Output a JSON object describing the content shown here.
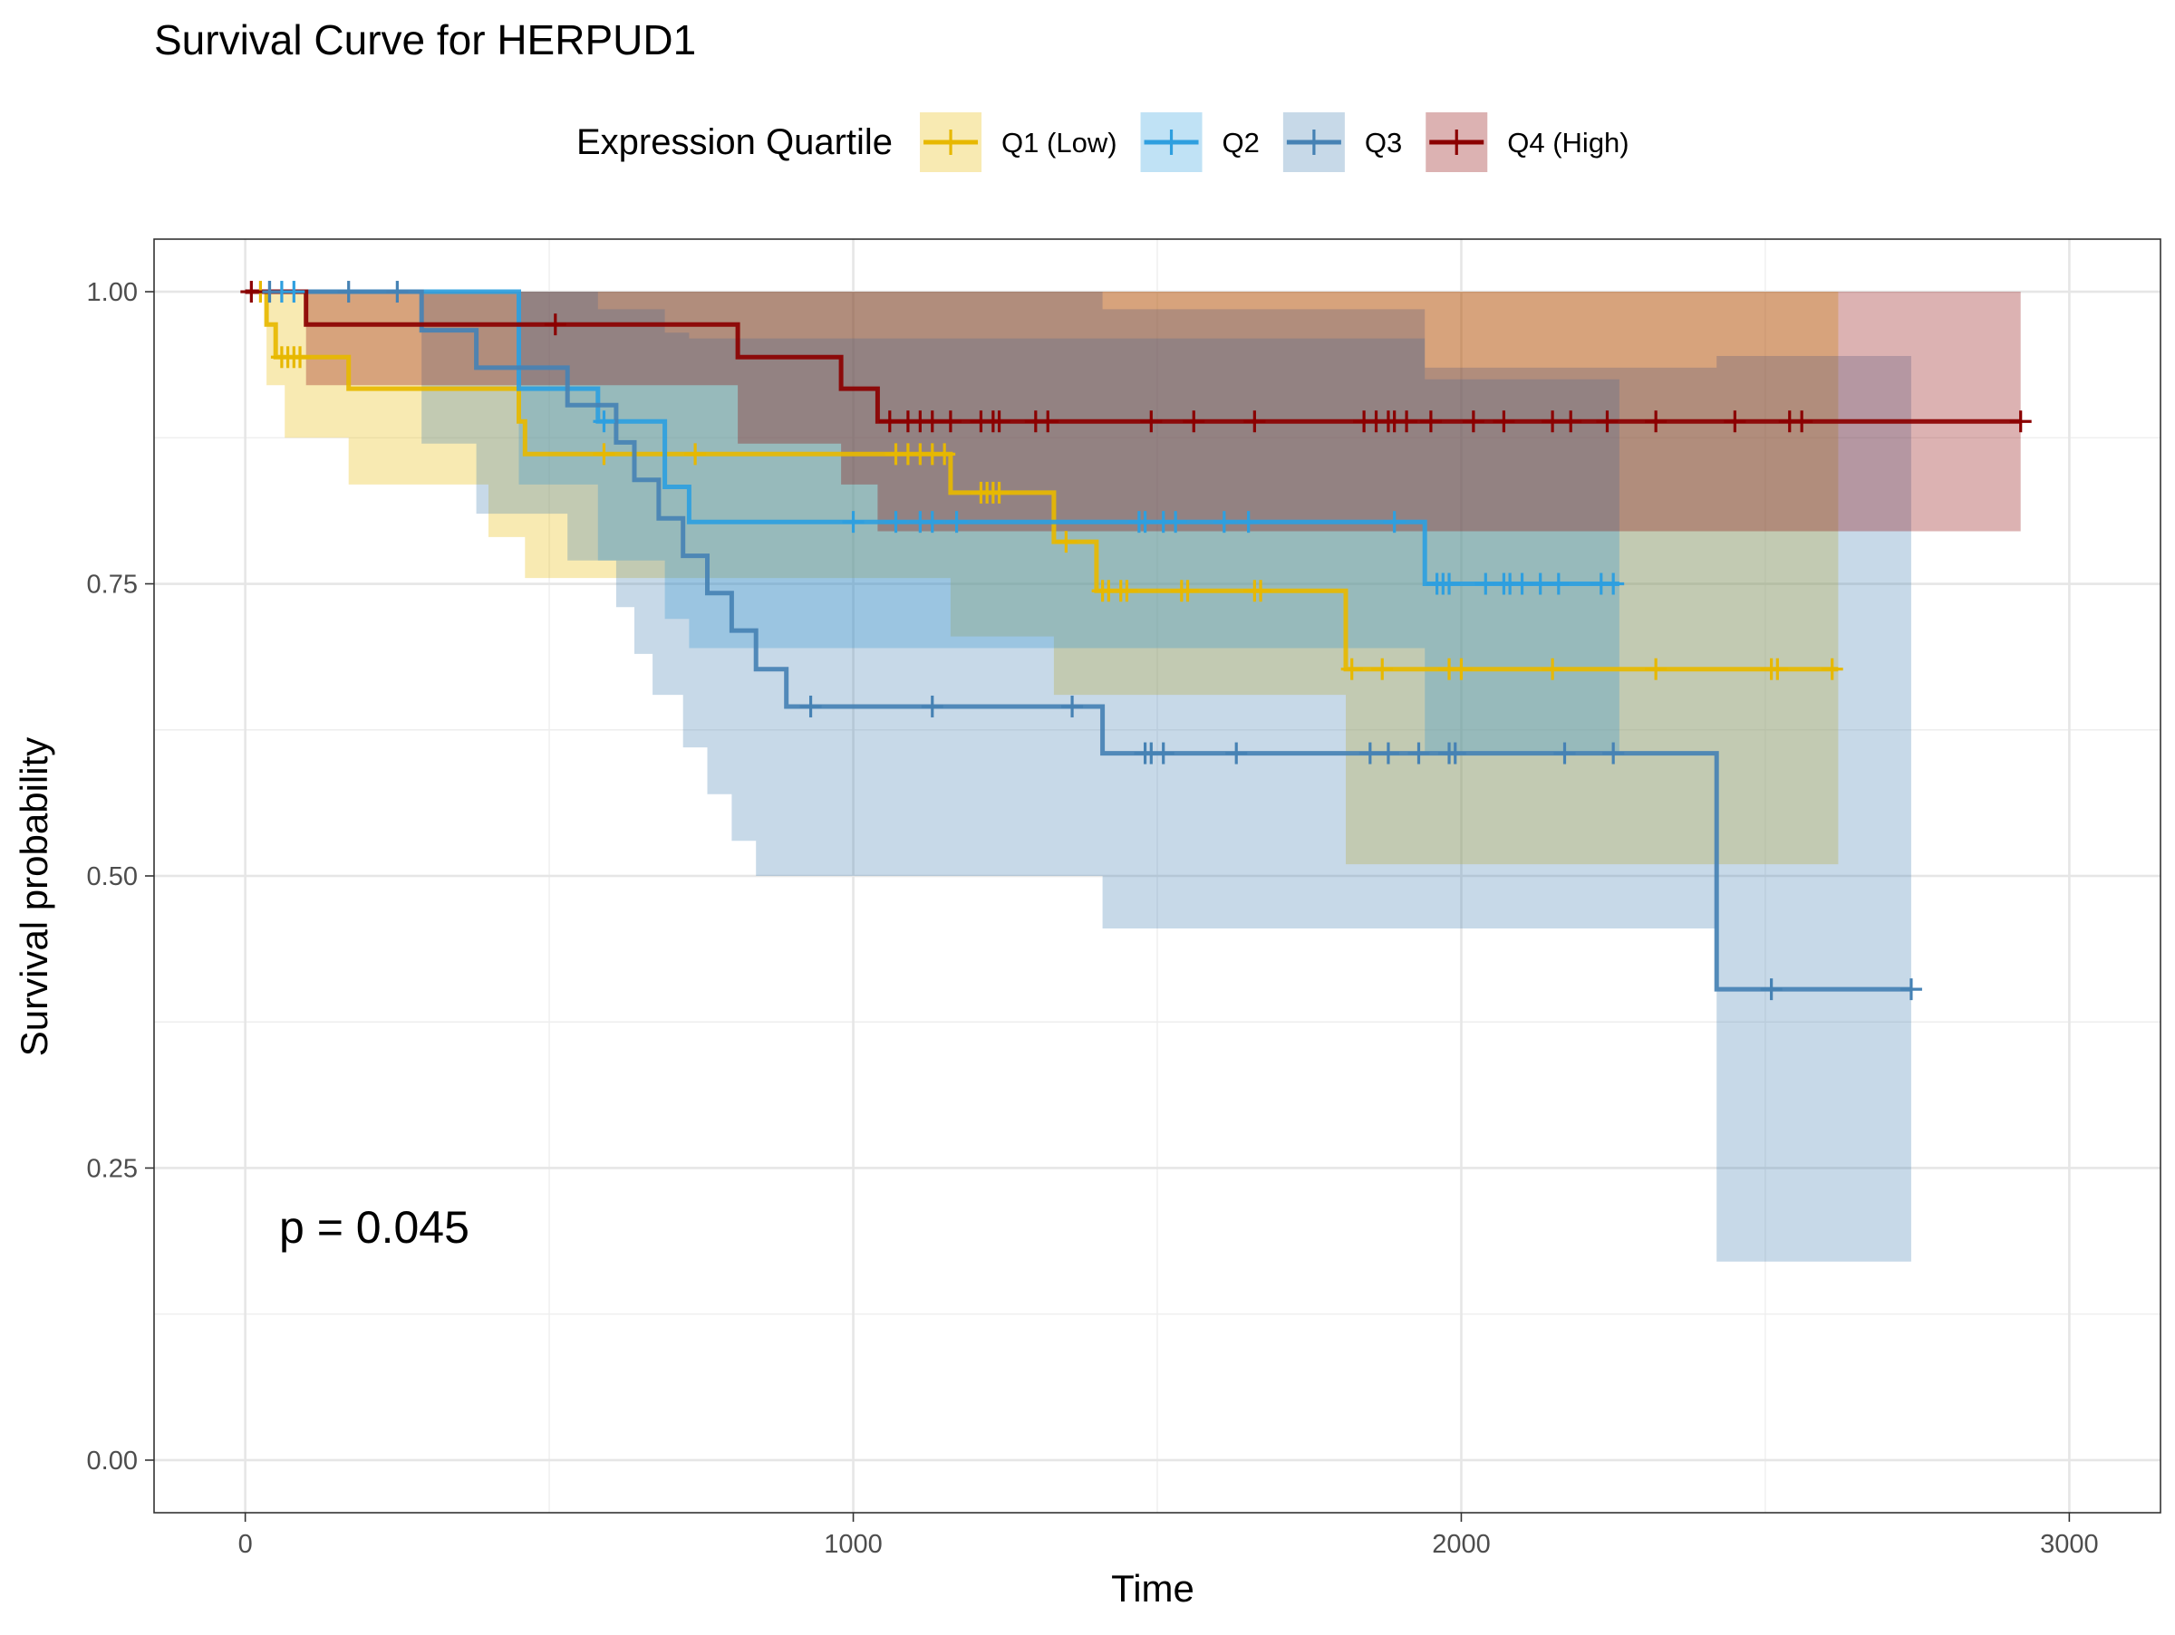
{
  "chart_data": {
    "type": "line",
    "subtype": "kaplan-meier step curves with confidence bands and censor marks",
    "title": "Survival Curve for HERPUD1",
    "xlabel": "Time",
    "ylabel": "Survival probability",
    "xlim": [
      -150,
      3150
    ],
    "ylim": [
      -0.045,
      1.045
    ],
    "x_ticks": [
      0,
      1000,
      2000,
      3000
    ],
    "x_tick_labels": [
      "0",
      "1000",
      "2000",
      "3000"
    ],
    "y_ticks": [
      0,
      0.25,
      0.5,
      0.75,
      1
    ],
    "y_tick_labels": [
      "0.00",
      "0.25",
      "0.50",
      "0.75",
      "1.00"
    ],
    "grid": true,
    "legend_title": "Expression Quartile",
    "legend_position": "top",
    "annotation": "p = 0.045",
    "series": [
      {
        "name": "Q1 (Low)",
        "color": "#E7B800",
        "steps": [
          [
            0,
            1.0
          ],
          [
            35,
            0.972
          ],
          [
            50,
            0.944
          ],
          [
            170,
            0.917
          ],
          [
            450,
            0.889
          ],
          [
            460,
            0.861
          ],
          [
            1160,
            0.828
          ],
          [
            1330,
            0.786
          ],
          [
            1400,
            0.744
          ],
          [
            1810,
            0.677
          ],
          [
            2620,
            0.677
          ]
        ],
        "lower": [
          [
            0,
            1.0
          ],
          [
            35,
            0.92
          ],
          [
            65,
            0.875
          ],
          [
            170,
            0.835
          ],
          [
            400,
            0.79
          ],
          [
            460,
            0.755
          ],
          [
            1000,
            0.755
          ],
          [
            1160,
            0.705
          ],
          [
            1330,
            0.655
          ],
          [
            1810,
            0.51
          ],
          [
            2620,
            0.51
          ]
        ],
        "upper": [
          [
            0,
            1.0
          ],
          [
            1160,
            1.0
          ],
          [
            1330,
            1.0
          ],
          [
            1810,
            1.0
          ],
          [
            2620,
            1.0
          ]
        ],
        "censor_x": [
          25,
          60,
          70,
          80,
          90,
          590,
          740,
          1070,
          1090,
          1110,
          1130,
          1150,
          1210,
          1220,
          1230,
          1240,
          1350,
          1410,
          1420,
          1440,
          1450,
          1540,
          1550,
          1660,
          1670,
          1820,
          1870,
          1980,
          2000,
          2150,
          2320,
          2510,
          2520,
          2610
        ]
      },
      {
        "name": "Q2",
        "color": "#2E9FDF",
        "steps": [
          [
            0,
            1.0
          ],
          [
            450,
            0.917
          ],
          [
            580,
            0.889
          ],
          [
            690,
            0.833
          ],
          [
            730,
            0.803
          ],
          [
            1940,
            0.75
          ],
          [
            2260,
            0.75
          ]
        ],
        "lower": [
          [
            0,
            1.0
          ],
          [
            400,
            1.0
          ],
          [
            450,
            0.835
          ],
          [
            580,
            0.77
          ],
          [
            690,
            0.72
          ],
          [
            730,
            0.695
          ],
          [
            1940,
            0.605
          ],
          [
            2260,
            0.605
          ]
        ],
        "upper": [
          [
            0,
            1.0
          ],
          [
            500,
            1.0
          ],
          [
            580,
            0.985
          ],
          [
            690,
            0.965
          ],
          [
            730,
            0.96
          ],
          [
            1940,
            0.925
          ],
          [
            2260,
            0.925
          ]
        ],
        "censor_x": [
          40,
          60,
          80,
          590,
          1000,
          1070,
          1110,
          1130,
          1170,
          1470,
          1480,
          1510,
          1530,
          1610,
          1650,
          1890,
          1960,
          1970,
          1980,
          2040,
          2070,
          2080,
          2100,
          2130,
          2160,
          2230,
          2250
        ]
      },
      {
        "name": "Q3",
        "color": "#4682B4",
        "steps": [
          [
            0,
            1.0
          ],
          [
            150,
            1.0
          ],
          [
            290,
            0.967
          ],
          [
            380,
            0.935
          ],
          [
            530,
            0.903
          ],
          [
            610,
            0.871
          ],
          [
            640,
            0.839
          ],
          [
            680,
            0.806
          ],
          [
            720,
            0.774
          ],
          [
            760,
            0.742
          ],
          [
            800,
            0.71
          ],
          [
            840,
            0.677
          ],
          [
            890,
            0.645
          ],
          [
            1410,
            0.605
          ],
          [
            2420,
            0.403
          ],
          [
            2740,
            0.403
          ]
        ],
        "lower": [
          [
            0,
            1.0
          ],
          [
            290,
            0.87
          ],
          [
            380,
            0.81
          ],
          [
            530,
            0.77
          ],
          [
            610,
            0.73
          ],
          [
            640,
            0.69
          ],
          [
            670,
            0.655
          ],
          [
            720,
            0.61
          ],
          [
            760,
            0.57
          ],
          [
            800,
            0.53
          ],
          [
            840,
            0.5
          ],
          [
            890,
            0.5
          ],
          [
            1410,
            0.455
          ],
          [
            2420,
            0.17
          ],
          [
            2740,
            0.17
          ]
        ],
        "upper": [
          [
            0,
            1.0
          ],
          [
            920,
            1.0
          ],
          [
            1410,
            0.985
          ],
          [
            1940,
            0.935
          ],
          [
            2420,
            0.945
          ],
          [
            2740,
            0.945
          ]
        ],
        "censor_x": [
          40,
          170,
          250,
          930,
          1130,
          1360,
          1480,
          1490,
          1510,
          1630,
          1850,
          1880,
          1930,
          1980,
          1990,
          2170,
          2250,
          2510,
          2740
        ]
      },
      {
        "name": "Q4 (High)",
        "color": "#8B0000",
        "steps": [
          [
            0,
            1.0
          ],
          [
            100,
            0.972
          ],
          [
            810,
            0.944
          ],
          [
            980,
            0.917
          ],
          [
            1040,
            0.889
          ],
          [
            2920,
            0.889
          ]
        ],
        "lower": [
          [
            0,
            1.0
          ],
          [
            100,
            0.92
          ],
          [
            810,
            0.87
          ],
          [
            980,
            0.835
          ],
          [
            1040,
            0.795
          ],
          [
            2920,
            0.795
          ]
        ],
        "upper": [
          [
            0,
            1.0
          ],
          [
            2920,
            1.0
          ]
        ],
        "censor_x": [
          10,
          510,
          1060,
          1090,
          1110,
          1130,
          1160,
          1210,
          1230,
          1240,
          1300,
          1320,
          1490,
          1560,
          1660,
          1840,
          1860,
          1880,
          1890,
          1910,
          1950,
          2020,
          2070,
          2150,
          2180,
          2240,
          2320,
          2450,
          2540,
          2560,
          2920
        ]
      }
    ]
  }
}
